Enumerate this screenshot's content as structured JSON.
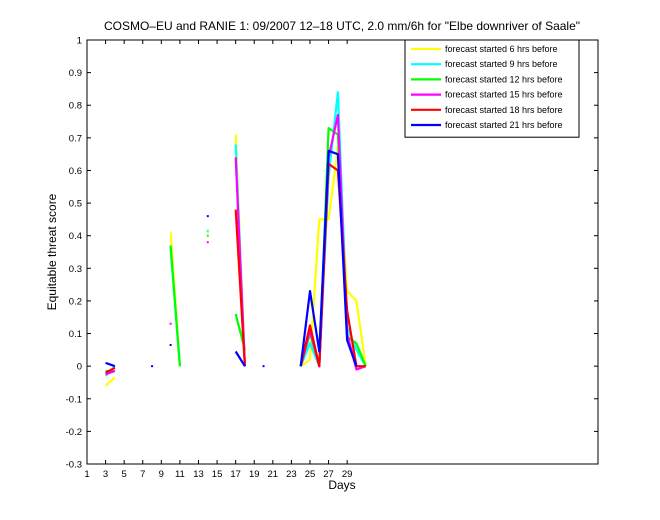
{
  "chart_data": {
    "type": "line",
    "title": "COSMO–EU and RANIE 1: 09/2007 12–18 UTC, 2.0 mm/6h for \"Elbe downriver of Saale\"",
    "xlabel": "Days",
    "ylabel": "Equitable threat score",
    "xlim": [
      1,
      56
    ],
    "ylim": [
      -0.3,
      1
    ],
    "xticks": [
      "1",
      "3",
      "5",
      "7",
      "9",
      "11",
      "13",
      "15",
      "17",
      "19",
      "21",
      "23",
      "25",
      "27",
      "29"
    ],
    "yticks": [
      "-0.3",
      "-0.2",
      "-0.1",
      "0",
      "0.1",
      "0.2",
      "0.3",
      "0.4",
      "0.5",
      "0.6",
      "0.7",
      "0.8",
      "0.9",
      "1"
    ],
    "legend_position": "top-right",
    "series": [
      {
        "name": "forecast started 6 hrs before",
        "color": "#ffff00",
        "segments": [
          [
            [
              3,
              -0.06
            ],
            [
              4,
              -0.035
            ]
          ],
          [
            [
              10,
              0.41
            ],
            [
              11,
              0.0
            ]
          ],
          [
            [
              17,
              0.71
            ],
            [
              18,
              0.0
            ]
          ],
          [
            [
              24,
              0.0
            ],
            [
              25,
              0.02
            ],
            [
              26,
              0.45
            ],
            [
              27,
              0.45
            ],
            [
              28,
              0.67
            ],
            [
              29,
              0.23
            ],
            [
              30,
              0.2
            ],
            [
              31,
              0.0
            ]
          ]
        ],
        "points": [
          [
            14,
            0.41
          ]
        ]
      },
      {
        "name": "forecast started 9 hrs before",
        "color": "#00ffff",
        "segments": [
          [
            [
              3,
              -0.03
            ],
            [
              4,
              0.0
            ]
          ],
          [
            [
              10,
              0.36
            ],
            [
              11,
              0.0
            ]
          ],
          [
            [
              17,
              0.68
            ],
            [
              18,
              0.0
            ]
          ],
          [
            [
              24,
              0.0
            ],
            [
              25,
              0.07
            ],
            [
              26,
              0.0
            ],
            [
              27,
              0.58
            ],
            [
              28,
              0.84
            ],
            [
              29,
              0.12
            ],
            [
              30,
              0.05
            ],
            [
              31,
              0.0
            ]
          ]
        ],
        "points": [
          [
            14,
            0.415
          ]
        ]
      },
      {
        "name": "forecast started 12 hrs before",
        "color": "#00ff00",
        "segments": [
          [
            [
              3,
              -0.015
            ],
            [
              4,
              -0.015
            ]
          ],
          [
            [
              10,
              0.37
            ],
            [
              11,
              0.0
            ]
          ],
          [
            [
              17,
              0.16
            ],
            [
              18,
              0.05
            ]
          ],
          [
            [
              24,
              0.0
            ],
            [
              25,
              0.1
            ],
            [
              26,
              0.0
            ],
            [
              27,
              0.73
            ],
            [
              28,
              0.71
            ],
            [
              29,
              0.09
            ],
            [
              30,
              0.07
            ],
            [
              31,
              0.0
            ]
          ]
        ],
        "points": [
          [
            14,
            0.4
          ]
        ]
      },
      {
        "name": "forecast started 15 hrs before",
        "color": "#ff00ff",
        "segments": [
          [
            [
              3,
              -0.025
            ],
            [
              4,
              -0.015
            ]
          ],
          [
            [
              17,
              0.64
            ],
            [
              18,
              0.0
            ]
          ],
          [
            [
              24,
              0.0
            ],
            [
              25,
              0.11
            ],
            [
              26,
              0.0
            ],
            [
              27,
              0.64
            ],
            [
              28,
              0.77
            ],
            [
              29,
              0.1
            ],
            [
              30,
              -0.01
            ],
            [
              31,
              0.0
            ]
          ]
        ],
        "points": [
          [
            10,
            0.13
          ],
          [
            14,
            0.38
          ]
        ]
      },
      {
        "name": "forecast started 18 hrs before",
        "color": "#ff0000",
        "segments": [
          [
            [
              3,
              -0.02
            ],
            [
              4,
              -0.005
            ]
          ],
          [
            [
              17,
              0.48
            ],
            [
              18,
              0.0
            ]
          ],
          [
            [
              24,
              0.0
            ],
            [
              25,
              0.125
            ],
            [
              26,
              0.0
            ],
            [
              27,
              0.62
            ],
            [
              28,
              0.6
            ],
            [
              29,
              0.17
            ],
            [
              30,
              0.0
            ],
            [
              31,
              0.0
            ]
          ]
        ],
        "points": []
      },
      {
        "name": "forecast started 21 hrs before",
        "color": "#0000ff",
        "segments": [
          [
            [
              3,
              0.01
            ],
            [
              4,
              0.0
            ]
          ],
          [
            [
              17,
              0.045
            ],
            [
              18,
              0.0
            ]
          ],
          [
            [
              24,
              0.0
            ],
            [
              25,
              0.23
            ],
            [
              26,
              0.045
            ],
            [
              27,
              0.66
            ],
            [
              28,
              0.65
            ],
            [
              29,
              0.08
            ],
            [
              30,
              0.0
            ]
          ]
        ],
        "points": [
          [
            8,
            0.0
          ],
          [
            10,
            0.065
          ],
          [
            14,
            0.46
          ],
          [
            20,
            0.0
          ]
        ]
      }
    ]
  }
}
